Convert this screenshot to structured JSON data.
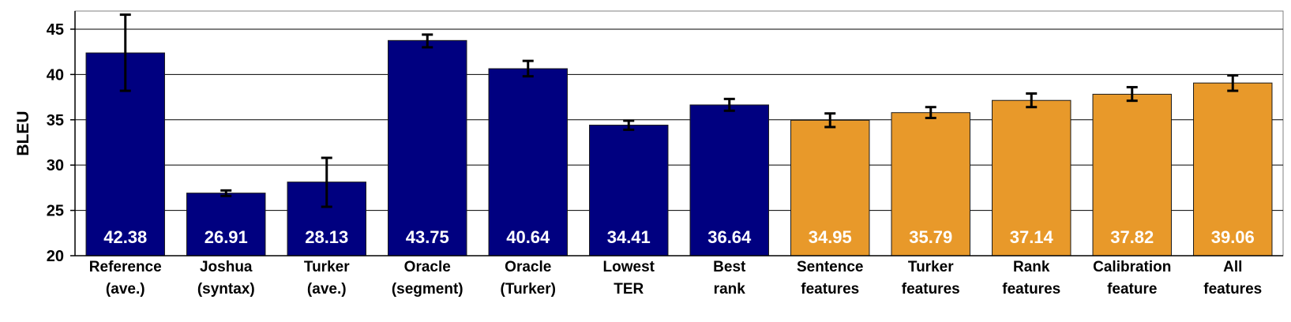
{
  "chart_data": {
    "type": "bar",
    "ylabel": "BLEU",
    "xlabel": "",
    "title": "",
    "ylim": [
      20,
      47
    ],
    "yticks": [
      20,
      25,
      30,
      35,
      40,
      45
    ],
    "grid": true,
    "legend": "none",
    "colors": {
      "baseline": "#000080",
      "feature": "#E8992A"
    },
    "categories": [
      {
        "label": [
          "Reference",
          "(ave.)"
        ],
        "value": 42.38,
        "value_label": "42.38",
        "err_low": 38.2,
        "err_high": 46.6,
        "group": "baseline"
      },
      {
        "label": [
          "Joshua",
          "(syntax)"
        ],
        "value": 26.91,
        "value_label": "26.91",
        "err_low": 26.6,
        "err_high": 27.2,
        "group": "baseline"
      },
      {
        "label": [
          "Turker",
          "(ave.)"
        ],
        "value": 28.13,
        "value_label": "28.13",
        "err_low": 25.4,
        "err_high": 30.8,
        "group": "baseline"
      },
      {
        "label": [
          "Oracle",
          "(segment)"
        ],
        "value": 43.75,
        "value_label": "43.75",
        "err_low": 43.0,
        "err_high": 44.4,
        "group": "baseline"
      },
      {
        "label": [
          "Oracle",
          "(Turker)"
        ],
        "value": 40.64,
        "value_label": "40.64",
        "err_low": 39.8,
        "err_high": 41.5,
        "group": "baseline"
      },
      {
        "label": [
          "Lowest",
          "TER"
        ],
        "value": 34.41,
        "value_label": "34.41",
        "err_low": 33.9,
        "err_high": 34.9,
        "group": "baseline"
      },
      {
        "label": [
          "Best",
          "rank"
        ],
        "value": 36.64,
        "value_label": "36.64",
        "err_low": 36.0,
        "err_high": 37.3,
        "group": "baseline"
      },
      {
        "label": [
          "Sentence",
          "features"
        ],
        "value": 34.95,
        "value_label": "34.95",
        "err_low": 34.2,
        "err_high": 35.7,
        "group": "feature"
      },
      {
        "label": [
          "Turker",
          "features"
        ],
        "value": 35.79,
        "value_label": "35.79",
        "err_low": 35.2,
        "err_high": 36.4,
        "group": "feature"
      },
      {
        "label": [
          "Rank",
          "features"
        ],
        "value": 37.14,
        "value_label": "37.14",
        "err_low": 36.4,
        "err_high": 37.9,
        "group": "feature"
      },
      {
        "label": [
          "Calibration",
          "feature"
        ],
        "value": 37.82,
        "value_label": "37.82",
        "err_low": 37.1,
        "err_high": 38.6,
        "group": "feature"
      },
      {
        "label": [
          "All",
          "features"
        ],
        "value": 39.06,
        "value_label": "39.06",
        "err_low": 38.2,
        "err_high": 39.9,
        "group": "feature"
      }
    ]
  }
}
